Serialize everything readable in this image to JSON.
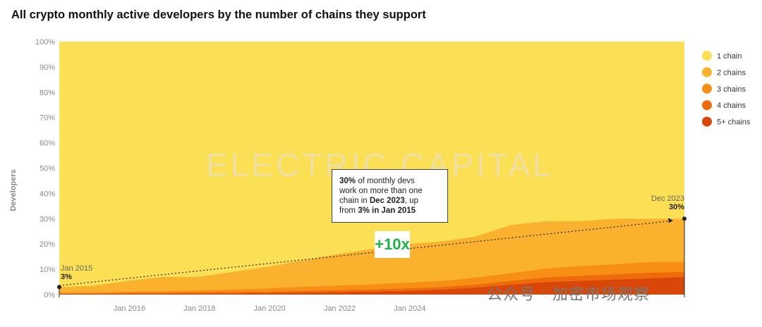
{
  "title": "All crypto monthly active developers by the number of chains they support",
  "ylabel": "Developers",
  "watermark": "ELECTRIC CAPITAL",
  "social_watermark": "公众号 · 加密市场观察",
  "annotation": {
    "line1_bold": "30%",
    "line1_rest": " of monthly devs",
    "line2": "work on more than one",
    "line3_pre": "chain in ",
    "line3_bold": "Dec 2023",
    "line3_post": ", up",
    "line4_pre": "from ",
    "line4_bold": "3% in Jan 2015"
  },
  "badge": "+10x",
  "start_callout": {
    "label": "Jan 2015",
    "value": "3%"
  },
  "end_callout": {
    "label": "Dec 2023",
    "value": "30%"
  },
  "colors": {
    "1 chain": "#fbdf55",
    "2 chains": "#fab22e",
    "3 chains": "#f78f14",
    "4 chains": "#ef6a0a",
    "5+ chains": "#d94708"
  },
  "chart_data": {
    "type": "area",
    "stacked": true,
    "normalized": true,
    "title": "All crypto monthly active developers by the number of chains they support",
    "ylabel": "Developers",
    "xlabel": "",
    "x_ticks": [
      "Jan 2016",
      "Jan 2018",
      "Jan 2020",
      "Jan 2022",
      "Jan 2024"
    ],
    "y_ticks": [
      "0%",
      "10%",
      "20%",
      "30%",
      "40%",
      "50%",
      "60%",
      "70%",
      "80%",
      "90%",
      "100%"
    ],
    "ylim": [
      0,
      100
    ],
    "legend_position": "right",
    "x": [
      "Jan 2015",
      "Jul 2015",
      "Jan 2016",
      "Jul 2016",
      "Jan 2017",
      "Jul 2017",
      "Jan 2018",
      "Jul 2018",
      "Jan 2019",
      "Jul 2019",
      "Jan 2020",
      "Jul 2020",
      "Jan 2021",
      "Jul 2021",
      "Jan 2022",
      "Jul 2022",
      "Jan 2023",
      "Jul 2023",
      "Dec 2023"
    ],
    "series": [
      {
        "name": "5+ chains",
        "values": [
          0.3,
          0.3,
          0.4,
          0.4,
          0.5,
          0.5,
          0.6,
          0.8,
          1.0,
          1.3,
          1.5,
          2.0,
          2.8,
          4.0,
          5.0,
          5.5,
          6.0,
          6.5,
          7.0
        ]
      },
      {
        "name": "4 chains",
        "values": [
          0.2,
          0.2,
          0.3,
          0.3,
          0.4,
          0.5,
          0.6,
          0.7,
          0.8,
          0.8,
          1.0,
          1.0,
          1.2,
          1.5,
          1.8,
          2.0,
          2.0,
          2.2,
          2.0
        ]
      },
      {
        "name": "3 chains",
        "values": [
          0.3,
          0.4,
          0.5,
          0.6,
          0.8,
          1.0,
          1.3,
          1.6,
          1.8,
          2.0,
          2.2,
          2.4,
          2.8,
          3.0,
          3.5,
          3.8,
          4.0,
          4.2,
          4.0
        ]
      },
      {
        "name": "2 chains",
        "values": [
          2.2,
          2.6,
          4.3,
          5.7,
          5.3,
          7.0,
          8.5,
          10.4,
          12.4,
          13.9,
          15.3,
          15.6,
          16.2,
          19.0,
          18.7,
          17.7,
          18.0,
          17.1,
          17.0
        ]
      },
      {
        "name": "1 chain",
        "values": [
          97.0,
          96.5,
          94.5,
          93.0,
          93.0,
          91.0,
          89.0,
          86.5,
          84.0,
          82.0,
          80.0,
          79.0,
          77.0,
          72.5,
          71.0,
          71.0,
          70.0,
          70.0,
          70.0
        ]
      }
    ]
  }
}
